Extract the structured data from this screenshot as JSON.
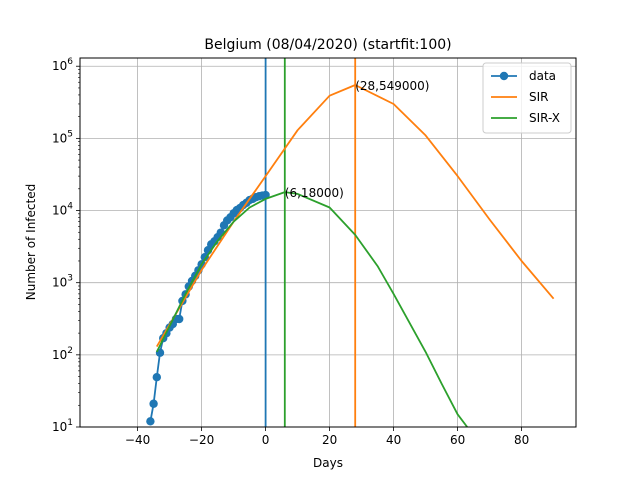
{
  "chart_data": {
    "type": "line",
    "title": "Belgium (08/04/2020) (startfit:100)",
    "xlabel": "Days",
    "ylabel": "Number of Infected",
    "xlim": [
      -58,
      97
    ],
    "ylim": [
      10,
      1300000
    ],
    "yscale": "log",
    "grid": true,
    "legend_position": "top-right",
    "x_ticks": [
      -40,
      -20,
      0,
      20,
      40,
      60,
      80
    ],
    "x_tick_labels": [
      "−40",
      "−20",
      "0",
      "20",
      "40",
      "60",
      "80"
    ],
    "y_ticks": [
      10,
      100,
      1000,
      10000,
      100000,
      1000000
    ],
    "y_tick_base": "10",
    "y_tick_exponents": [
      "1",
      "2",
      "3",
      "4",
      "5",
      "6"
    ],
    "series": [
      {
        "name": "data",
        "color": "#1f77b4",
        "marker": "circle",
        "x": [
          -36,
          -35,
          -34,
          -33,
          -32,
          -31,
          -30,
          -29,
          -28,
          -27,
          -26,
          -25,
          -24,
          -23,
          -22,
          -21,
          -20,
          -19,
          -18,
          -17,
          -16,
          -15,
          -14,
          -13,
          -12,
          -11,
          -10,
          -9,
          -8,
          -7,
          -6,
          -5,
          -4,
          -3,
          -2,
          -1,
          0
        ],
        "y": [
          12,
          21,
          49,
          107,
          170,
          199,
          239,
          267,
          314,
          314,
          559,
          689,
          886,
          1058,
          1243,
          1486,
          1795,
          2257,
          2815,
          3401,
          3743,
          4269,
          4937,
          6235,
          7284,
          8047,
          9134,
          10135,
          10836,
          11899,
          12775,
          13964,
          14567,
          15321,
          15800,
          16100,
          16400
        ]
      },
      {
        "name": "SIR",
        "color": "#ff7f0e",
        "peak_day": 28,
        "peak_value": 549000,
        "x": [
          -34,
          -20,
          -10,
          0,
          10,
          20,
          28,
          40,
          50,
          60,
          70,
          80,
          90
        ],
        "y": [
          130,
          1500,
          7000,
          30000,
          130000,
          390000,
          549000,
          300000,
          110000,
          30000,
          7500,
          2000,
          600
        ]
      },
      {
        "name": "SIR-X",
        "color": "#2ca02c",
        "peak_day": 6,
        "peak_value": 18000,
        "x": [
          -34,
          -30,
          -25,
          -20,
          -15,
          -10,
          -5,
          0,
          6,
          10,
          20,
          28,
          35,
          40,
          50,
          55,
          60,
          63
        ],
        "y": [
          110,
          250,
          700,
          1800,
          3800,
          7000,
          11000,
          14500,
          18000,
          17000,
          11000,
          4600,
          1700,
          700,
          110,
          40,
          15,
          10
        ]
      }
    ],
    "vlines": [
      {
        "x": 0,
        "color": "#1f77b4"
      },
      {
        "x": 6,
        "color": "#2ca02c"
      },
      {
        "x": 28,
        "color": "#ff7f0e"
      }
    ],
    "annotations": [
      {
        "text": "(28,549000)",
        "x": 28,
        "y": 549000
      },
      {
        "text": "(6,18000)",
        "x": 6,
        "y": 18000
      }
    ]
  }
}
